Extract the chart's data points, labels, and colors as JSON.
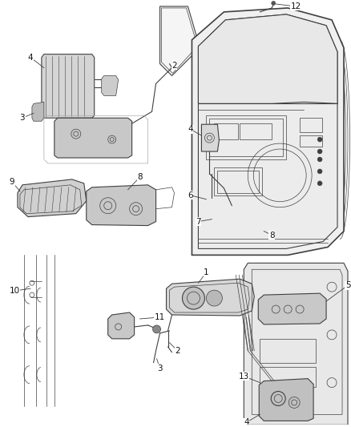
{
  "bg_color": "#ffffff",
  "line_color": "#404040",
  "label_color": "#111111",
  "figsize": [
    4.38,
    5.33
  ],
  "dpi": 100,
  "lw": 0.8,
  "lw_thin": 0.5,
  "lw_thick": 1.2
}
